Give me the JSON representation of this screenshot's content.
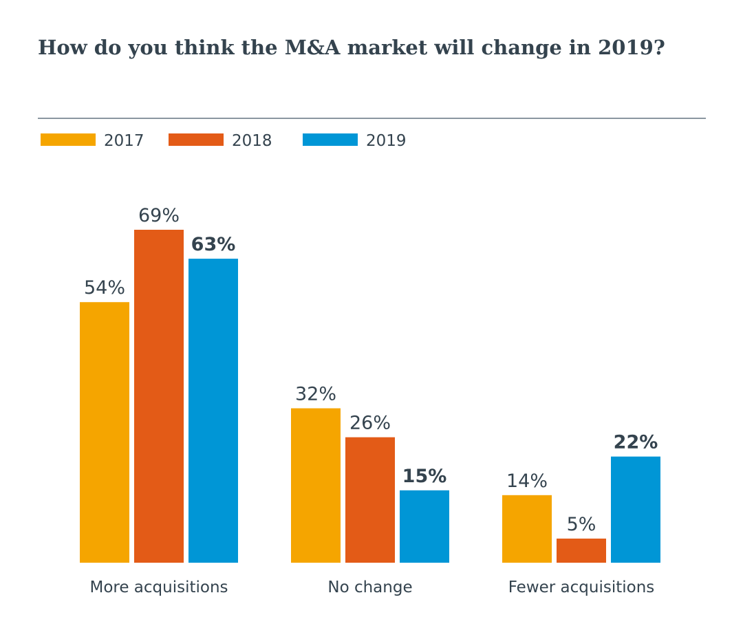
{
  "chart_data": {
    "type": "bar",
    "title": "How do you think the M&A market will change in 2019?",
    "categories": [
      "More acquisitions",
      "No change",
      "Fewer acquisitions"
    ],
    "series": [
      {
        "name": "2017",
        "color": "#f5a500",
        "values": [
          54,
          32,
          14
        ],
        "labels": [
          "54%",
          "32%",
          "14%"
        ],
        "bold_labels": false
      },
      {
        "name": "2018",
        "color": "#e35b17",
        "values": [
          69,
          26,
          5
        ],
        "labels": [
          "69%",
          "26%",
          "5%"
        ],
        "bold_labels": false
      },
      {
        "name": "2019",
        "color": "#0096d6",
        "values": [
          63,
          15,
          22
        ],
        "labels": [
          "63%",
          "15%",
          "22%"
        ],
        "bold_labels": true
      }
    ],
    "ylim": [
      0,
      69
    ],
    "grid": false,
    "legend_position": "top-left"
  }
}
